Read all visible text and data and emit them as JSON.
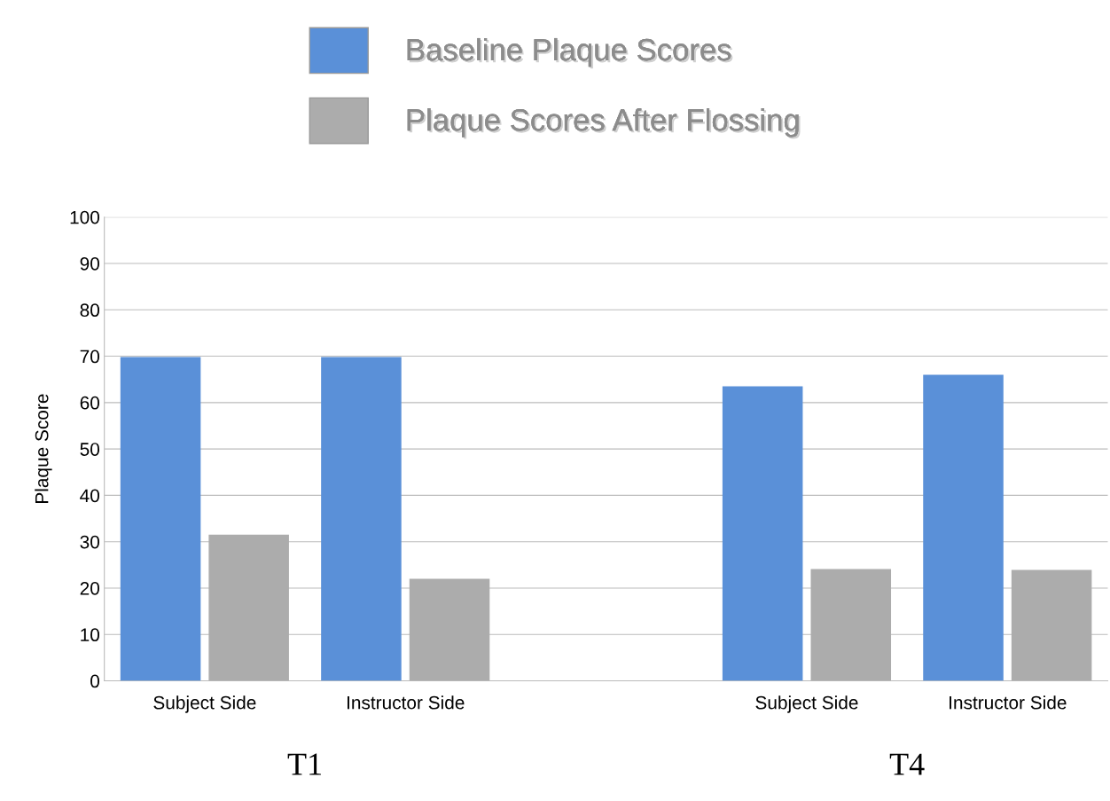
{
  "chart_data": {
    "type": "bar",
    "ylabel": "Plaque Score",
    "categories": [
      "Subject Side",
      "Instructor Side",
      null,
      "Subject Side",
      "Instructor Side"
    ],
    "series": [
      {
        "name": "Baseline Plaque Scores",
        "color": "#5a90d8",
        "values": [
          69.8,
          69.8,
          null,
          63.5,
          66.0
        ]
      },
      {
        "name": "Plaque Scores After Flossing",
        "color": "#acacac",
        "values": [
          31.5,
          22.0,
          null,
          24.1,
          23.9
        ]
      }
    ],
    "ylim": [
      0,
      100
    ],
    "yticks": [
      0,
      10,
      20,
      30,
      40,
      50,
      60,
      70,
      80,
      90,
      100
    ],
    "grid": "y",
    "legend": "top",
    "annotations": [
      "T1",
      "T4"
    ]
  }
}
